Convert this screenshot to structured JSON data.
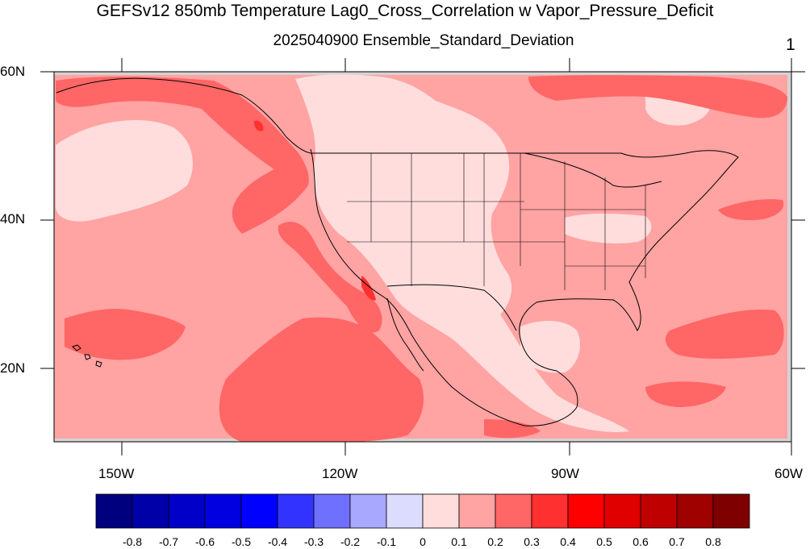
{
  "title": "GEFSv12 850mb Temperature Lag0_Cross_Correlation w Vapor_Pressure_Deficit",
  "subtitle": "2025040900 Ensemble_Standard_Deviation",
  "panel_number": "1",
  "lat_labels": [
    "60N",
    "40N",
    "20N"
  ],
  "lon_labels": [
    "150W",
    "120W",
    "90W",
    "60W"
  ],
  "colorbar": {
    "labels": [
      "-0.8",
      "-0.7",
      "-0.6",
      "-0.5",
      "-0.4",
      "-0.3",
      "-0.2",
      "-0.1",
      "0",
      "0.1",
      "0.2",
      "0.3",
      "0.4",
      "0.5",
      "0.6",
      "0.7",
      "0.8"
    ],
    "colors": [
      "#00007F",
      "#0000A8",
      "#0000C8",
      "#0000E0",
      "#0000FF",
      "#3333FF",
      "#7070FF",
      "#A8A8FF",
      "#DCDCFF",
      "#FFDDDD",
      "#FFA3A3",
      "#FF6666",
      "#FF3030",
      "#FF0000",
      "#E00000",
      "#BF0000",
      "#9F0000",
      "#7F0000"
    ]
  },
  "map": {
    "extent": {
      "lon": [
        -160,
        -60
      ],
      "lat": [
        10,
        60
      ]
    },
    "fill_colors": {
      "lowest": "#FFDDDD",
      "low": "#FFA3A3",
      "mid": "#FF6666",
      "high": "#FF3030",
      "missing": "#D3D3D3"
    }
  }
}
